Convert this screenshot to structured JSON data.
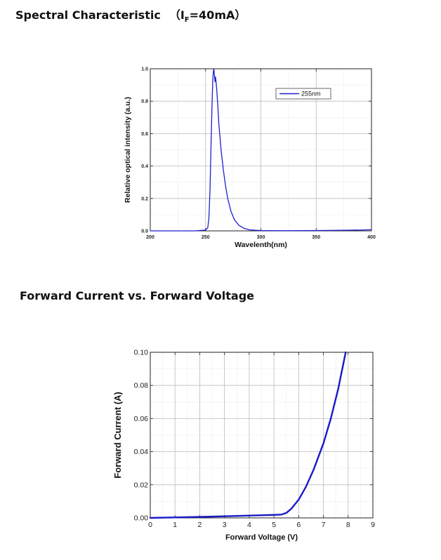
{
  "page": {
    "title1_main": "Spectral Characteristic",
    "title1_open": "（I",
    "title1_sub": "F",
    "title1_close": "=40mA）",
    "title2": "Forward Current vs. Forward Voltage"
  },
  "chart_data": [
    {
      "type": "line",
      "title": "",
      "xlabel": "Wavelenth(nm)",
      "ylabel": "Relative optical intensity (a.u.)",
      "xlim": [
        200,
        400
      ],
      "ylim": [
        0,
        1.0
      ],
      "xticks": [
        "200",
        "250",
        "300",
        "350",
        "400"
      ],
      "yticks": [
        "0.0",
        "0.2",
        "0.4",
        "0.6",
        "0.8",
        "1.0"
      ],
      "grid": true,
      "legend_position": "top-right",
      "series": [
        {
          "name": "255nm",
          "color": "#1f1fd0",
          "x": [
            200,
            240,
            250,
            252,
            253,
            254,
            255,
            256,
            256.5,
            257,
            257.5,
            258,
            258.5,
            259,
            260,
            261,
            262,
            264,
            266,
            268,
            270,
            273,
            276,
            280,
            285,
            290,
            300,
            320,
            350,
            380,
            400
          ],
          "y": [
            0,
            0,
            0.005,
            0.02,
            0.08,
            0.25,
            0.55,
            0.82,
            0.93,
            0.98,
            1.0,
            0.96,
            0.92,
            0.95,
            0.88,
            0.78,
            0.66,
            0.5,
            0.38,
            0.28,
            0.2,
            0.12,
            0.07,
            0.035,
            0.015,
            0.006,
            0.002,
            0.001,
            0.002,
            0.004,
            0.007
          ]
        }
      ]
    },
    {
      "type": "line",
      "title": "",
      "xlabel": "Forward Voltage (V)",
      "ylabel": "Forward Current (A)",
      "xlim": [
        0,
        9
      ],
      "ylim": [
        0,
        0.1
      ],
      "xticks": [
        "0",
        "1",
        "2",
        "3",
        "4",
        "5",
        "6",
        "7",
        "8",
        "9"
      ],
      "yticks": [
        "0.00",
        "0.02",
        "0.04",
        "0.06",
        "0.08",
        "0.10"
      ],
      "grid": true,
      "series": [
        {
          "color": "#1a1ac8",
          "x": [
            0,
            1,
            2,
            3,
            4,
            5,
            5.3,
            5.5,
            5.7,
            6.0,
            6.3,
            6.6,
            7.0,
            7.3,
            7.6,
            7.9
          ],
          "y": [
            0,
            0.0003,
            0.0006,
            0.001,
            0.0014,
            0.0018,
            0.002,
            0.003,
            0.0055,
            0.011,
            0.019,
            0.029,
            0.045,
            0.06,
            0.078,
            0.1
          ]
        }
      ]
    }
  ]
}
